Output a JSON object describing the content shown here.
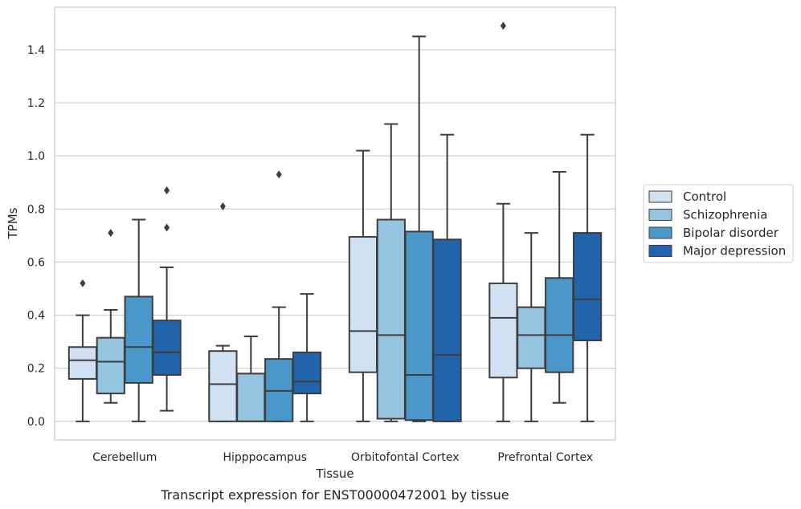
{
  "chart_data": {
    "type": "boxplot",
    "title": "Transcript expression for ENST00000472001 by tissue",
    "xlabel": "Tissue",
    "ylabel": "TPMs",
    "ylim": [
      -0.07,
      1.56
    ],
    "yticks": [
      0.0,
      0.2,
      0.4,
      0.6,
      0.8,
      1.0,
      1.2,
      1.4
    ],
    "ytick_labels": [
      "0.0",
      "0.2",
      "0.4",
      "0.6",
      "0.8",
      "1.0",
      "1.2",
      "1.4"
    ],
    "grid": "horizontal",
    "legend_position": "right",
    "categories": [
      "Cerebellum",
      "Hipppocampus",
      "Orbitofontal Cortex",
      "Prefrontal Cortex"
    ],
    "series": [
      {
        "name": "Control",
        "color": "#d0e1f2",
        "boxes": [
          {
            "whislo": 0.0,
            "q1": 0.16,
            "med": 0.23,
            "q3": 0.28,
            "whishi": 0.4,
            "fliers": [
              0.52
            ]
          },
          {
            "whislo": 0.0,
            "q1": 0.0,
            "med": 0.14,
            "q3": 0.265,
            "whishi": 0.285,
            "fliers": [
              0.81
            ]
          },
          {
            "whislo": 0.0,
            "q1": 0.185,
            "med": 0.34,
            "q3": 0.695,
            "whishi": 1.02,
            "fliers": []
          },
          {
            "whislo": 0.0,
            "q1": 0.165,
            "med": 0.39,
            "q3": 0.52,
            "whishi": 0.82,
            "fliers": [
              1.49
            ]
          }
        ]
      },
      {
        "name": "Schizophrenia",
        "color": "#94c4df",
        "boxes": [
          {
            "whislo": 0.07,
            "q1": 0.105,
            "med": 0.225,
            "q3": 0.315,
            "whishi": 0.42,
            "fliers": [
              0.71
            ]
          },
          {
            "whislo": 0.0,
            "q1": 0.0,
            "med": 0.0,
            "q3": 0.18,
            "whishi": 0.32,
            "fliers": []
          },
          {
            "whislo": 0.0,
            "q1": 0.01,
            "med": 0.325,
            "q3": 0.76,
            "whishi": 1.12,
            "fliers": []
          },
          {
            "whislo": 0.0,
            "q1": 0.2,
            "med": 0.325,
            "q3": 0.43,
            "whishi": 0.71,
            "fliers": []
          }
        ]
      },
      {
        "name": "Bipolar disorder",
        "color": "#4a98c9",
        "boxes": [
          {
            "whislo": 0.0,
            "q1": 0.145,
            "med": 0.28,
            "q3": 0.47,
            "whishi": 0.76,
            "fliers": []
          },
          {
            "whislo": 0.0,
            "q1": 0.0,
            "med": 0.115,
            "q3": 0.235,
            "whishi": 0.43,
            "fliers": [
              0.93
            ]
          },
          {
            "whislo": 0.0,
            "q1": 0.005,
            "med": 0.175,
            "q3": 0.715,
            "whishi": 1.45,
            "fliers": []
          },
          {
            "whislo": 0.07,
            "q1": 0.185,
            "med": 0.325,
            "q3": 0.54,
            "whishi": 0.94,
            "fliers": []
          }
        ]
      },
      {
        "name": "Major depression",
        "color": "#2164ab",
        "boxes": [
          {
            "whislo": 0.04,
            "q1": 0.175,
            "med": 0.26,
            "q3": 0.38,
            "whishi": 0.58,
            "fliers": [
              0.73,
              0.87
            ]
          },
          {
            "whislo": 0.0,
            "q1": 0.105,
            "med": 0.15,
            "q3": 0.26,
            "whishi": 0.48,
            "fliers": []
          },
          {
            "whislo": 0.0,
            "q1": 0.0,
            "med": 0.25,
            "q3": 0.685,
            "whishi": 1.08,
            "fliers": []
          },
          {
            "whislo": 0.0,
            "q1": 0.305,
            "med": 0.46,
            "q3": 0.71,
            "whishi": 1.08,
            "fliers": []
          }
        ]
      }
    ]
  }
}
